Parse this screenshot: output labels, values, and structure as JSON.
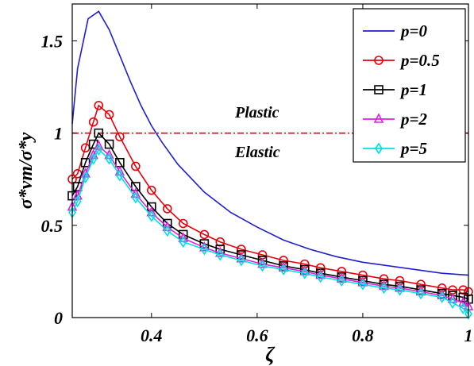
{
  "chart_data": {
    "type": "line",
    "xlabel": "ζ",
    "ylabel": "σ*vm/σ*y",
    "xlim": [
      0.25,
      1.0
    ],
    "ylim": [
      0,
      1.7
    ],
    "x_ticks": [
      "0.4",
      "0.6",
      "0.8",
      "1"
    ],
    "y_ticks": [
      "0",
      "0.5",
      "1",
      "1.5"
    ],
    "annotations": [
      "Plastic",
      "Elastic"
    ],
    "reference_line": {
      "y": 1.0,
      "style": "dash-dot",
      "color": "#e8000b"
    },
    "legend_position": "top-right",
    "grid": false,
    "series": [
      {
        "name": "p=0",
        "color": "#1f1fd0",
        "marker": "none",
        "x": [
          0.25,
          0.26,
          0.28,
          0.3,
          0.32,
          0.34,
          0.36,
          0.38,
          0.4,
          0.42,
          0.45,
          0.5,
          0.55,
          0.6,
          0.65,
          0.7,
          0.75,
          0.8,
          0.85,
          0.9,
          0.95,
          1.0
        ],
        "y": [
          1.05,
          1.35,
          1.62,
          1.66,
          1.56,
          1.42,
          1.28,
          1.15,
          1.04,
          0.95,
          0.83,
          0.68,
          0.57,
          0.49,
          0.42,
          0.37,
          0.33,
          0.3,
          0.28,
          0.26,
          0.24,
          0.23
        ]
      },
      {
        "name": "p=0.5",
        "color": "#e8000b",
        "marker": "circle",
        "x": [
          0.25,
          0.26,
          0.275,
          0.29,
          0.3,
          0.32,
          0.34,
          0.37,
          0.4,
          0.43,
          0.46,
          0.5,
          0.53,
          0.57,
          0.61,
          0.65,
          0.69,
          0.72,
          0.76,
          0.8,
          0.84,
          0.87,
          0.91,
          0.95,
          0.97,
          0.99,
          1.0
        ],
        "y": [
          0.75,
          0.78,
          0.92,
          1.06,
          1.15,
          1.1,
          0.98,
          0.82,
          0.69,
          0.59,
          0.51,
          0.45,
          0.41,
          0.37,
          0.34,
          0.31,
          0.29,
          0.27,
          0.25,
          0.23,
          0.21,
          0.2,
          0.18,
          0.16,
          0.15,
          0.15,
          0.14
        ]
      },
      {
        "name": "p=1",
        "color": "#000000",
        "marker": "square",
        "x": [
          0.25,
          0.26,
          0.275,
          0.29,
          0.3,
          0.32,
          0.34,
          0.37,
          0.4,
          0.43,
          0.46,
          0.5,
          0.53,
          0.57,
          0.61,
          0.65,
          0.69,
          0.72,
          0.76,
          0.8,
          0.84,
          0.87,
          0.91,
          0.95,
          0.97,
          0.99,
          1.0
        ],
        "y": [
          0.66,
          0.71,
          0.84,
          0.94,
          1.0,
          0.94,
          0.84,
          0.71,
          0.6,
          0.51,
          0.45,
          0.4,
          0.37,
          0.34,
          0.31,
          0.28,
          0.26,
          0.24,
          0.22,
          0.2,
          0.18,
          0.17,
          0.15,
          0.13,
          0.12,
          0.11,
          0.1
        ]
      },
      {
        "name": "p=2",
        "color": "#e020e0",
        "marker": "triangle",
        "x": [
          0.25,
          0.26,
          0.275,
          0.29,
          0.3,
          0.32,
          0.34,
          0.37,
          0.4,
          0.43,
          0.46,
          0.5,
          0.53,
          0.57,
          0.61,
          0.65,
          0.69,
          0.72,
          0.76,
          0.8,
          0.84,
          0.87,
          0.91,
          0.95,
          0.97,
          0.99,
          1.0
        ],
        "y": [
          0.6,
          0.66,
          0.78,
          0.88,
          0.93,
          0.88,
          0.79,
          0.67,
          0.57,
          0.49,
          0.43,
          0.38,
          0.35,
          0.32,
          0.29,
          0.27,
          0.25,
          0.23,
          0.21,
          0.19,
          0.17,
          0.16,
          0.14,
          0.12,
          0.1,
          0.08,
          0.06
        ]
      },
      {
        "name": "p=5",
        "color": "#00e0e0",
        "marker": "diamond",
        "x": [
          0.25,
          0.26,
          0.275,
          0.29,
          0.3,
          0.32,
          0.34,
          0.37,
          0.4,
          0.43,
          0.46,
          0.5,
          0.53,
          0.57,
          0.61,
          0.65,
          0.69,
          0.72,
          0.76,
          0.8,
          0.84,
          0.87,
          0.91,
          0.95,
          0.97,
          0.99,
          1.0
        ],
        "y": [
          0.57,
          0.63,
          0.76,
          0.86,
          0.91,
          0.86,
          0.77,
          0.65,
          0.55,
          0.47,
          0.41,
          0.37,
          0.34,
          0.31,
          0.28,
          0.26,
          0.24,
          0.22,
          0.2,
          0.18,
          0.16,
          0.15,
          0.13,
          0.11,
          0.08,
          0.05,
          0.02
        ]
      }
    ]
  }
}
